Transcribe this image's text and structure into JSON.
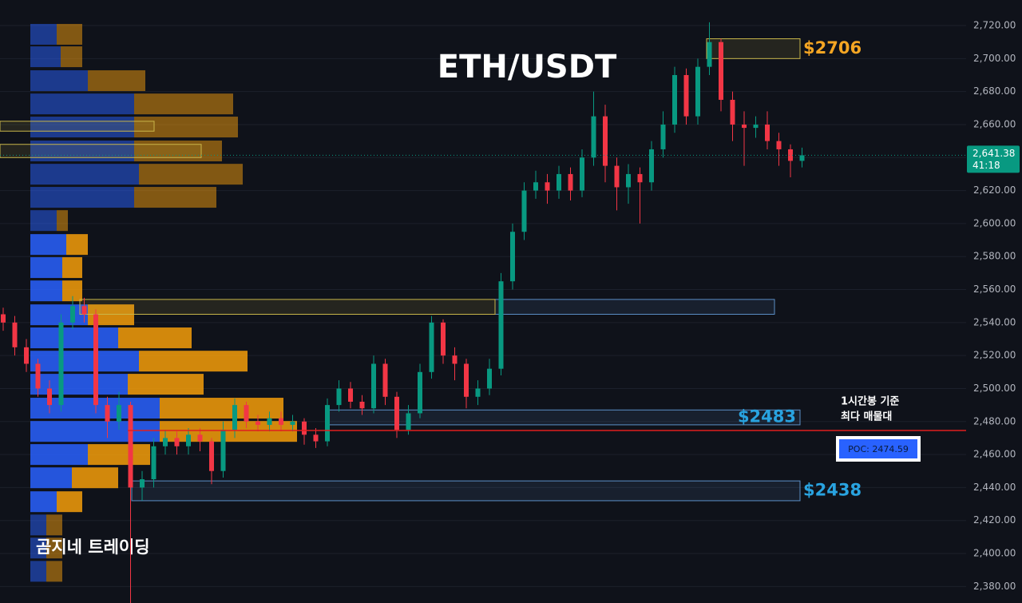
{
  "chart_data": {
    "type": "candlestick",
    "title": "ETH/USDT",
    "watermark": "곰지네 트레이딩",
    "ylim": [
      2370,
      2735.5
    ],
    "yticks": [
      {
        "value": 2380,
        "label": "2,380.00"
      },
      {
        "value": 2400,
        "label": "2,400.00"
      },
      {
        "value": 2420,
        "label": "2,420.00"
      },
      {
        "value": 2440,
        "label": "2,440.00"
      },
      {
        "value": 2460,
        "label": "2,460.00"
      },
      {
        "value": 2480,
        "label": "2,480.00"
      },
      {
        "value": 2500,
        "label": "2,500.00"
      },
      {
        "value": 2520,
        "label": "2,520.00"
      },
      {
        "value": 2540,
        "label": "2,540.00"
      },
      {
        "value": 2560,
        "label": "2,560.00"
      },
      {
        "value": 2580,
        "label": "2,580.00"
      },
      {
        "value": 2600,
        "label": "2,600.00"
      },
      {
        "value": 2620,
        "label": "2,620.00"
      },
      {
        "value": 2640,
        "label": "2,640.00"
      },
      {
        "value": 2660,
        "label": "2,660.00"
      },
      {
        "value": 2680,
        "label": "2,680.00"
      },
      {
        "value": 2700,
        "label": "2,700.00"
      },
      {
        "value": 2720,
        "label": "2,720.00"
      }
    ],
    "grid": true,
    "up_color": "#089981",
    "down_color": "#f23645",
    "candles": {
      "open": [
        2545,
        2540,
        2525,
        2515,
        2500,
        2490,
        2540,
        2550,
        2545,
        2490,
        2480,
        2490,
        2440,
        2445,
        2465,
        2470,
        2465,
        2472,
        2468,
        2450,
        2475,
        2490,
        2480,
        2478,
        2482,
        2478,
        2480,
        2472,
        2468,
        2490,
        2500,
        2492,
        2488,
        2515,
        2495,
        2475,
        2485,
        2510,
        2540,
        2520,
        2515,
        2495,
        2500,
        2512,
        2565,
        2595,
        2620,
        2625,
        2620,
        2630,
        2620,
        2640,
        2665,
        2635,
        2622,
        2630,
        2625,
        2645,
        2660,
        2690,
        2665,
        2695,
        2710,
        2675,
        2660,
        2658,
        2660,
        2650,
        2645,
        2638
      ],
      "high": [
        2549,
        2544,
        2530,
        2518,
        2505,
        2545,
        2556,
        2555,
        2548,
        2495,
        2498,
        2492,
        2450,
        2470,
        2475,
        2474,
        2476,
        2476,
        2470,
        2480,
        2494,
        2492,
        2484,
        2486,
        2486,
        2484,
        2482,
        2476,
        2494,
        2505,
        2504,
        2496,
        2520,
        2518,
        2498,
        2490,
        2515,
        2544,
        2542,
        2525,
        2518,
        2505,
        2518,
        2570,
        2600,
        2625,
        2632,
        2630,
        2635,
        2634,
        2645,
        2680,
        2672,
        2640,
        2636,
        2634,
        2650,
        2668,
        2695,
        2694,
        2700,
        2722,
        2712,
        2680,
        2668,
        2665,
        2668,
        2655,
        2648,
        2646
      ],
      "low": [
        2535,
        2520,
        2510,
        2495,
        2485,
        2486,
        2536,
        2540,
        2485,
        2470,
        2475,
        2370,
        2432,
        2440,
        2460,
        2460,
        2460,
        2462,
        2442,
        2446,
        2470,
        2476,
        2474,
        2474,
        2474,
        2474,
        2466,
        2464,
        2465,
        2486,
        2488,
        2484,
        2485,
        2490,
        2470,
        2472,
        2482,
        2506,
        2515,
        2505,
        2488,
        2490,
        2496,
        2508,
        2560,
        2590,
        2615,
        2612,
        2615,
        2614,
        2616,
        2635,
        2625,
        2608,
        2612,
        2600,
        2620,
        2640,
        2655,
        2660,
        2660,
        2690,
        2668,
        2650,
        2635,
        2652,
        2645,
        2635,
        2628,
        2634
      ],
      "close": [
        2540,
        2525,
        2515,
        2500,
        2490,
        2540,
        2550,
        2545,
        2490,
        2480,
        2490,
        2440,
        2445,
        2465,
        2470,
        2465,
        2472,
        2468,
        2450,
        2475,
        2490,
        2480,
        2478,
        2482,
        2478,
        2480,
        2472,
        2468,
        2490,
        2500,
        2492,
        2488,
        2515,
        2495,
        2475,
        2485,
        2510,
        2540,
        2520,
        2515,
        2495,
        2500,
        2512,
        2565,
        2595,
        2620,
        2625,
        2620,
        2630,
        2620,
        2640,
        2665,
        2635,
        2622,
        2630,
        2625,
        2645,
        2660,
        2690,
        2665,
        2695,
        2710,
        2675,
        2660,
        2658,
        2660,
        2650,
        2645,
        2638,
        2641.38
      ]
    },
    "volume_profile": {
      "price": [
        2714.7,
        2701.1,
        2686.6,
        2672.5,
        2658.5,
        2644,
        2629.9,
        2615.9,
        2601.8,
        2587.3,
        2573.3,
        2559.2,
        2544.7,
        2530.7,
        2516.6,
        2502.6,
        2488.1,
        2474,
        2460,
        2445.9,
        2431.4,
        2417.3,
        2403.3,
        2389.2
      ],
      "buy": [
        33,
        38,
        72,
        130,
        130,
        130,
        136,
        130,
        33,
        45,
        40,
        40,
        72,
        110,
        136,
        122,
        162,
        162,
        72,
        52,
        33,
        20,
        20,
        20
      ],
      "sell": [
        32,
        27,
        72,
        124,
        130,
        110,
        130,
        103,
        14,
        27,
        25,
        25,
        58,
        92,
        136,
        95,
        155,
        172,
        78,
        58,
        32,
        20,
        20,
        20
      ],
      "buy_color": "#2962ff",
      "sell_color": "#f59e0b"
    },
    "zones": [
      {
        "range": [
          2700,
          2712
        ],
        "color": "#c9b64a",
        "label": "$2706",
        "label_color": "#f5a623"
      },
      {
        "range": [
          2478,
          2487
        ],
        "color": "#5b8fc7",
        "label": "$2483",
        "label_color": "#29a3e0"
      },
      {
        "range": [
          2432,
          2444
        ],
        "color": "#5b8fc7",
        "label": "$2438",
        "label_color": "#29a3e0"
      },
      {
        "range": [
          2545,
          2554
        ],
        "color": "#5b8fc7"
      },
      {
        "range": [
          2545,
          2554
        ],
        "color": "#c9b64a"
      },
      {
        "range": [
          2656,
          2662
        ],
        "color": "#c9b64a"
      },
      {
        "range": [
          2640,
          2648
        ],
        "color": "#c9b64a"
      }
    ],
    "poc": {
      "value": 2474.59,
      "label": "POC: 2474.59",
      "color": "#e01e1e"
    },
    "poc_note": [
      "1시간봉 기준",
      "최다 매물대"
    ],
    "last_price": {
      "value": 2641.38,
      "label": "2,641.38",
      "countdown": "41:18"
    }
  }
}
